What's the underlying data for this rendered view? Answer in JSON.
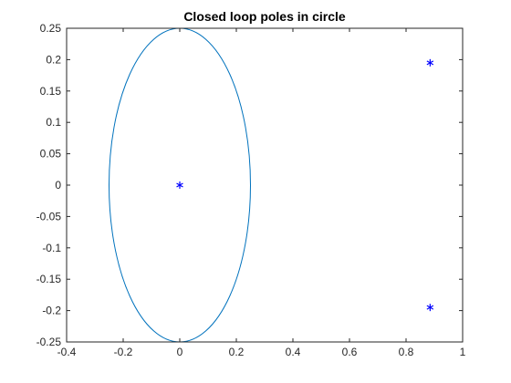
{
  "chart_data": {
    "type": "scatter",
    "title": "Closed loop poles in circle",
    "xlabel": "",
    "ylabel": "",
    "xlim": [
      -0.4,
      1
    ],
    "ylim": [
      -0.25,
      0.25
    ],
    "x_ticks": [
      -0.4,
      -0.2,
      0,
      0.2,
      0.4,
      0.6,
      0.8,
      1
    ],
    "x_tick_labels": [
      "-0.4",
      "-0.2",
      "0",
      "0.2",
      "0.4",
      "0.6",
      "0.8",
      "1"
    ],
    "y_ticks": [
      -0.25,
      -0.2,
      -0.15,
      -0.1,
      -0.05,
      0,
      0.05,
      0.1,
      0.15,
      0.2,
      0.25
    ],
    "y_tick_labels": [
      "-0.25",
      "-0.2",
      "-0.15",
      "-0.1",
      "-0.05",
      "0",
      "0.05",
      "0.1",
      "0.15",
      "0.2",
      "0.25"
    ],
    "grid": false,
    "circle": {
      "center": [
        0,
        0
      ],
      "radius": 0.25,
      "color": "#0072BD"
    },
    "poles": {
      "marker": "asterisk",
      "color": "#0000FF",
      "points": [
        {
          "x": 0,
          "y": 0
        },
        {
          "x": 0.885,
          "y": 0.195
        },
        {
          "x": 0.885,
          "y": -0.195
        }
      ]
    }
  }
}
